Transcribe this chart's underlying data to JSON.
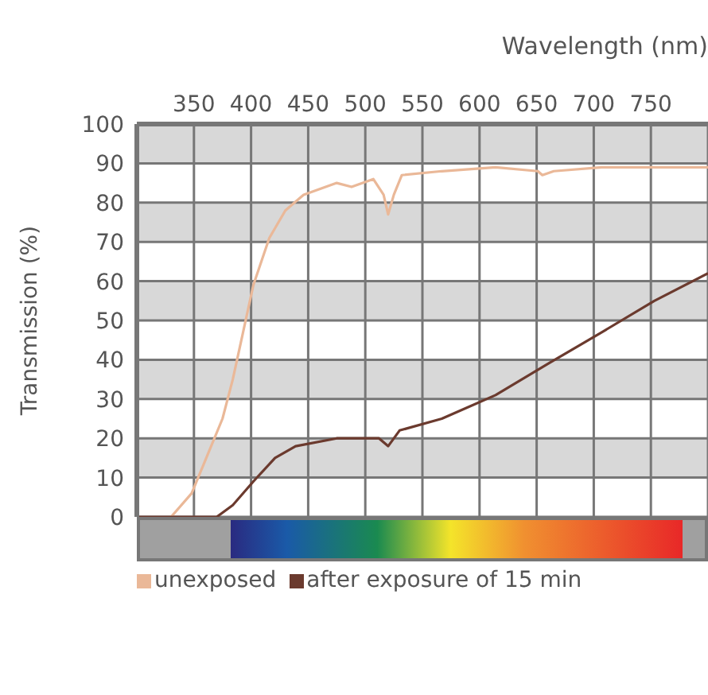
{
  "chart_data": {
    "type": "line",
    "xlabel": "Wavelength (nm)",
    "ylabel": "Transmission  (%)",
    "xlim": [
      300,
      800
    ],
    "xticks": [
      350,
      400,
      450,
      500,
      550,
      600,
      650,
      700,
      750
    ],
    "ylim": [
      0,
      100
    ],
    "yticks": [
      0,
      10,
      20,
      30,
      40,
      50,
      60,
      70,
      80,
      90,
      100
    ],
    "grid": true,
    "legend": "bottom",
    "marker": "none",
    "line_style": "solid",
    "series": [
      {
        "name": "unexposed",
        "color": "#eab898",
        "x": [
          330,
          348,
          375,
          384,
          393,
          402,
          416,
          430,
          446,
          475,
          488,
          507,
          516,
          520,
          525,
          532,
          567,
          614,
          651,
          655,
          665,
          707,
          800
        ],
        "values": [
          0,
          6,
          25,
          35,
          47,
          59,
          71,
          78,
          82,
          85,
          84,
          86,
          82,
          77,
          82,
          87,
          88,
          89,
          88,
          87,
          88,
          89,
          89
        ]
      },
      {
        "name": "after exposure of 15 min",
        "color": "#6b3a2e",
        "x": [
          300,
          370,
          384,
          402,
          421,
          439,
          475,
          512,
          520,
          530,
          567,
          614,
          660,
          707,
          753,
          800
        ],
        "values": [
          0,
          0,
          3,
          9,
          15,
          18,
          20,
          20,
          18,
          22,
          25,
          31,
          39,
          47,
          55,
          62
        ]
      }
    ]
  }
}
